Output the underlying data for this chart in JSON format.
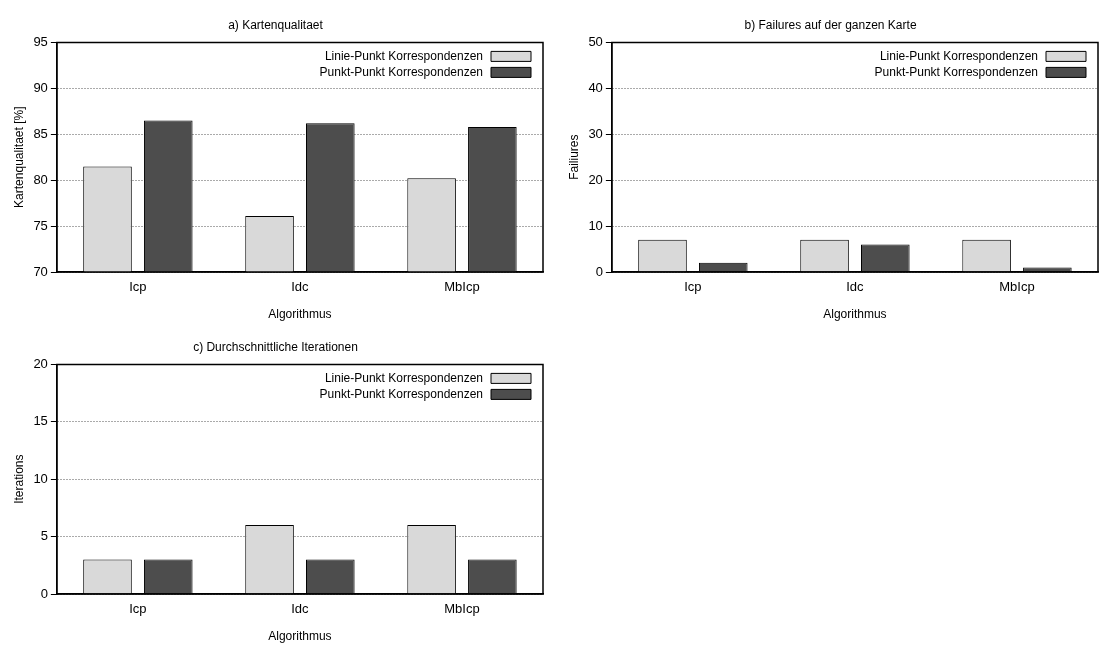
{
  "chart_data": [
    {
      "type": "bar",
      "title": "a) Kartenqualitaet",
      "xlabel": "Algorithmus",
      "ylabel": "Kartenqualitaet [%]",
      "categories": [
        "Icp",
        "Idc",
        "MbIcp"
      ],
      "series": [
        {
          "name": "Linie-Punkt Korrespondenzen",
          "color": "#d9d9d9",
          "values": [
            81.5,
            76.1,
            80.2
          ]
        },
        {
          "name": "Punkt-Punkt Korrespondenzen",
          "color": "#4d4d4d",
          "values": [
            86.5,
            86.2,
            85.8
          ]
        }
      ],
      "ylim": [
        70,
        95
      ],
      "yticks": [
        70,
        75,
        80,
        85,
        90,
        95
      ],
      "grid": "y",
      "legend": "top right"
    },
    {
      "type": "bar",
      "title": "b) Failures auf der ganzen Karte",
      "xlabel": "Algorithmus",
      "ylabel": "Failiures",
      "categories": [
        "Icp",
        "Idc",
        "MbIcp"
      ],
      "series": [
        {
          "name": "Linie-Punkt Korrespondenzen",
          "color": "#d9d9d9",
          "values": [
            7,
            7,
            7
          ]
        },
        {
          "name": "Punkt-Punkt Korrespondenzen",
          "color": "#4d4d4d",
          "values": [
            2,
            6,
            1
          ]
        }
      ],
      "ylim": [
        0,
        50
      ],
      "yticks": [
        0,
        10,
        20,
        30,
        40,
        50
      ],
      "grid": "y",
      "legend": "top right"
    },
    {
      "type": "bar",
      "title": "c) Durchschnittliche Iterationen",
      "xlabel": "Algorithmus",
      "ylabel": "Iterations",
      "categories": [
        "Icp",
        "Idc",
        "MbIcp"
      ],
      "series": [
        {
          "name": "Linie-Punkt Korrespondenzen",
          "color": "#d9d9d9",
          "values": [
            3,
            6,
            6
          ]
        },
        {
          "name": "Punkt-Punkt Korrespondenzen",
          "color": "#4d4d4d",
          "values": [
            3,
            3,
            3
          ]
        }
      ],
      "ylim": [
        0,
        20
      ],
      "yticks": [
        0,
        5,
        10,
        15,
        20
      ],
      "grid": "y",
      "legend": "top right"
    }
  ]
}
